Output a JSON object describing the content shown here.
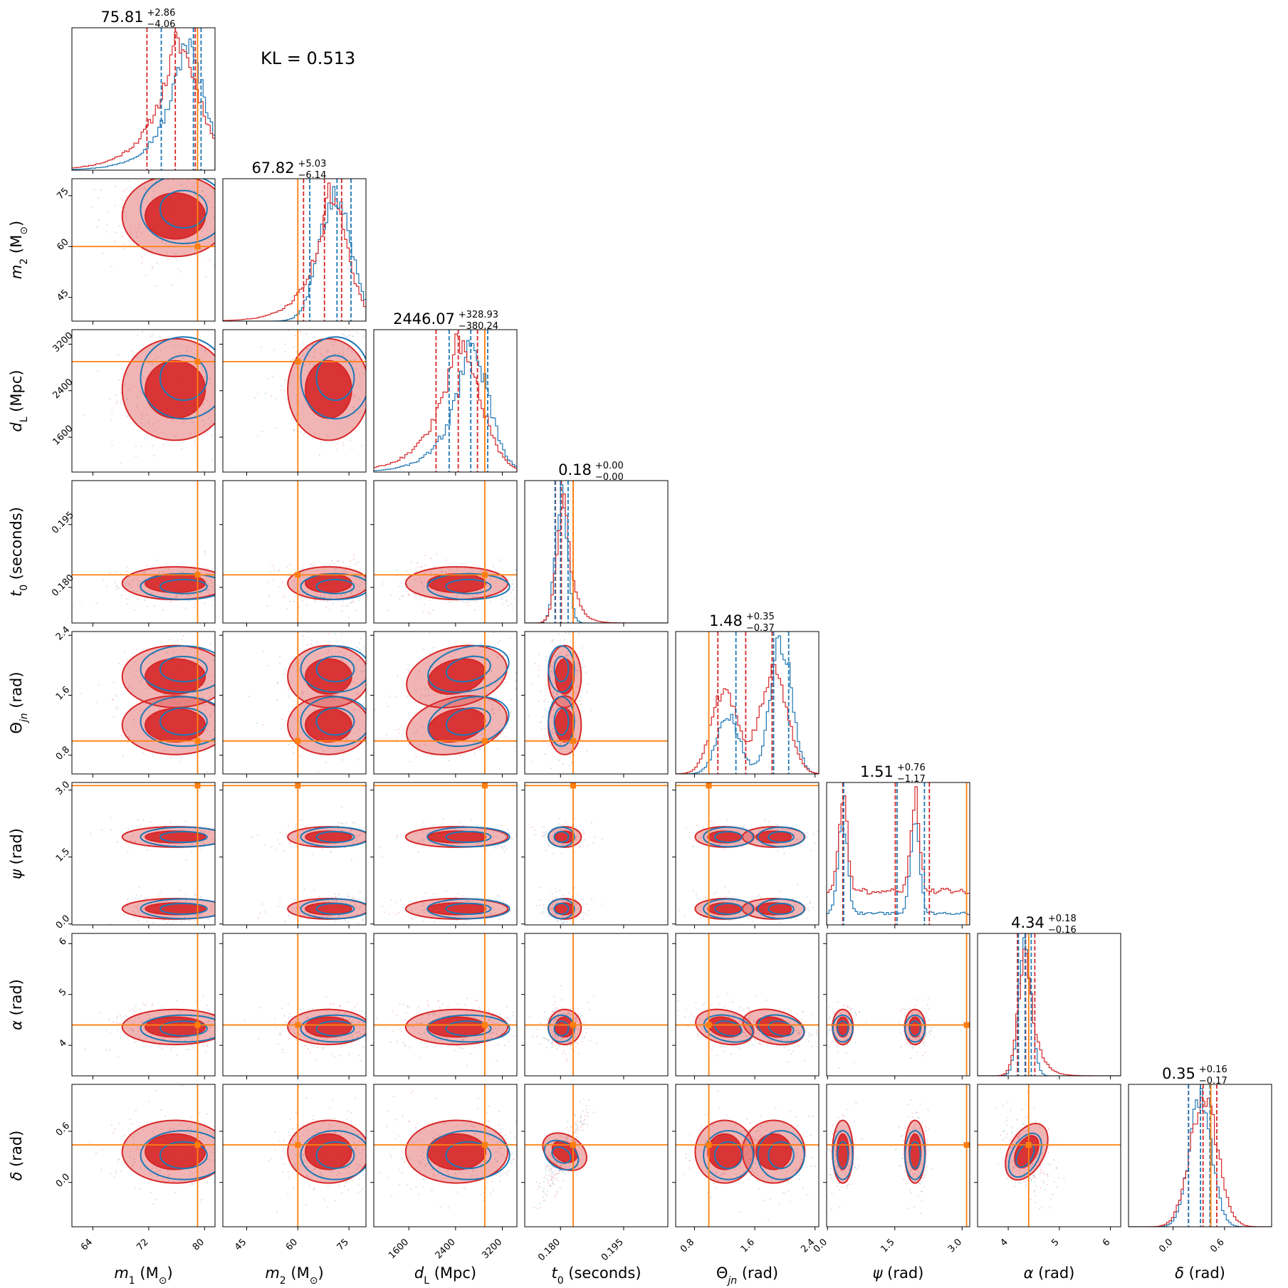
{
  "annotation": "KL = 0.513",
  "colors": {
    "model_a": "#d62728",
    "model_b": "#1f77b4",
    "truth": "#ff7f0e"
  },
  "chart_data": {
    "type": "corner",
    "parameters": [
      {
        "key": "m1",
        "label": "m_1 (M_sun)",
        "range": [
          61,
          81.5
        ],
        "ticks": [
          64,
          72,
          80
        ],
        "tick_labels": [
          "64",
          "72",
          "80"
        ],
        "truth": 79,
        "summary": {
          "median": "75.81",
          "plus": "+2.86",
          "minus": "−4.06"
        },
        "series": {
          "a": {
            "mean": 75.8,
            "sd": 3.3,
            "skew": -6,
            "q": [
              71.75,
              75.81,
              78.67
            ]
          },
          "b": {
            "mean": 77,
            "sd": 2.8,
            "skew": -6,
            "q": [
              73.8,
              78.4,
              79.5
            ]
          }
        }
      },
      {
        "key": "m2",
        "label": "m_2 (M_sun)",
        "range": [
          38,
          80
        ],
        "ticks": [
          45,
          60,
          75
        ],
        "tick_labels": [
          "45",
          "60",
          "75"
        ],
        "truth": 60,
        "summary": {
          "median": "67.82",
          "plus": "+5.03",
          "minus": "−6.14"
        },
        "series": {
          "a": {
            "mean": 69,
            "sd": 5.2,
            "skew": -1,
            "q": [
              61.68,
              67.82,
              72.85
            ]
          },
          "b": {
            "mean": 71,
            "sd": 4.6,
            "skew": 0,
            "q": [
              63.5,
              71.5,
              75.6
            ]
          }
        }
      },
      {
        "key": "dL",
        "label": "d_L (Mpc)",
        "range": [
          1000,
          3450
        ],
        "ticks": [
          1600,
          2400,
          3200
        ],
        "tick_labels": [
          "1600",
          "2400",
          "3200"
        ],
        "truth": 2900,
        "summary": {
          "median": "2446.07",
          "plus": "+328.93",
          "minus": "−380.24"
        },
        "series": {
          "a": {
            "mean": 2420,
            "sd": 380,
            "skew": -1,
            "q": [
              2065.83,
              2446.07,
              2775.0
            ]
          },
          "b": {
            "mean": 2620,
            "sd": 320,
            "skew": -1,
            "q": [
              2290,
              2660,
              2950
            ]
          }
        }
      },
      {
        "key": "t0",
        "label": "t_0 (seconds)",
        "range": [
          0.1715,
          0.2055
        ],
        "ticks": [
          0.18,
          0.195
        ],
        "tick_labels": [
          "0.180",
          "0.195"
        ],
        "truth": 0.183,
        "summary": {
          "median": "0.18",
          "plus": "+0.00",
          "minus": "−0.00"
        },
        "series": {
          "a": {
            "mean": 0.181,
            "sd": 0.0017,
            "skew": 1,
            "q": [
              0.1788,
              0.1802,
              0.183
            ]
          },
          "b": {
            "mean": 0.1802,
            "sd": 0.0014,
            "skew": 0,
            "q": [
              0.1787,
              0.18,
              0.1818
            ]
          }
        }
      },
      {
        "key": "theta_jn",
        "label": "Theta_jn (rad)",
        "range": [
          0.55,
          2.45
        ],
        "ticks": [
          0.8,
          1.6,
          2.4
        ],
        "tick_labels": [
          "0.8",
          "1.6",
          "2.4"
        ],
        "truth": 0.99,
        "summary": {
          "median": "1.48",
          "plus": "+0.35",
          "minus": "−0.37"
        },
        "series": {
          "a": {
            "bimodal": [
              [
                1.2,
                0.17,
                0.45
              ],
              [
                1.85,
                0.18,
                0.55
              ]
            ],
            "q": [
              1.11,
              1.48,
              1.83
            ]
          },
          "b": {
            "bimodal": [
              [
                1.25,
                0.15,
                0.3
              ],
              [
                1.95,
                0.14,
                0.7
              ]
            ],
            "q": [
              1.35,
              1.85,
              2.05
            ]
          }
        }
      },
      {
        "key": "psi",
        "label": "psi (rad)",
        "range": [
          -0.02,
          3.17
        ],
        "ticks": [
          0.0,
          1.5,
          3.0
        ],
        "tick_labels": [
          "0.0",
          "1.5",
          "3.0"
        ],
        "truth": 3.1,
        "summary": {
          "median": "1.51",
          "plus": "+0.76",
          "minus": "−1.17"
        },
        "series": {
          "a": {
            "bimodal": [
              [
                0.34,
                0.1,
                0.5
              ],
              [
                1.95,
                0.1,
                0.5
              ]
            ],
            "floor": 0.35,
            "q": [
              0.34,
              1.51,
              2.27
            ]
          },
          "b": {
            "bimodal": [
              [
                0.34,
                0.1,
                0.5
              ],
              [
                1.95,
                0.1,
                0.5
              ]
            ],
            "floor": 0.12,
            "q": [
              0.36,
              1.55,
              2.16
            ]
          }
        }
      },
      {
        "key": "alpha",
        "label": "alpha (rad)",
        "range": [
          3.4,
          6.2
        ],
        "ticks": [
          4,
          5,
          6
        ],
        "tick_labels": [
          "4",
          "5",
          "6"
        ],
        "truth": 4.4,
        "summary": {
          "median": "4.34",
          "plus": "+0.18",
          "minus": "−0.16"
        },
        "series": {
          "a": {
            "mean": 4.36,
            "sd": 0.15,
            "skew": 1,
            "q": [
              4.18,
              4.34,
              4.52
            ]
          },
          "b": {
            "mean": 4.33,
            "sd": 0.12,
            "skew": 0,
            "q": [
              4.2,
              4.33,
              4.45
            ]
          }
        }
      },
      {
        "key": "delta",
        "label": "delta (rad)",
        "range": [
          -0.52,
          1.15
        ],
        "ticks": [
          0.0,
          0.6
        ],
        "tick_labels": [
          "0.0",
          "0.6"
        ],
        "truth": 0.44,
        "summary": {
          "median": "0.35",
          "plus": "+0.16",
          "minus": "−0.17"
        },
        "series": {
          "a": {
            "mean": 0.36,
            "sd": 0.16,
            "skew": 0,
            "q": [
              0.18,
              0.35,
              0.51
            ]
          },
          "b": {
            "mean": 0.32,
            "sd": 0.13,
            "skew": 0,
            "q": [
              0.18,
              0.32,
              0.43
            ]
          }
        }
      }
    ],
    "pair_rules": {
      "t0-delta": {
        "corr": 0.85
      },
      "theta_jn-dL": {
        "corr": 0.4
      },
      "alpha-theta_jn": {
        "corr": -0.4
      },
      "alpha-delta": {
        "corr": -0.3
      }
    },
    "contour_levels": [
      0.68,
      0.95
    ]
  }
}
